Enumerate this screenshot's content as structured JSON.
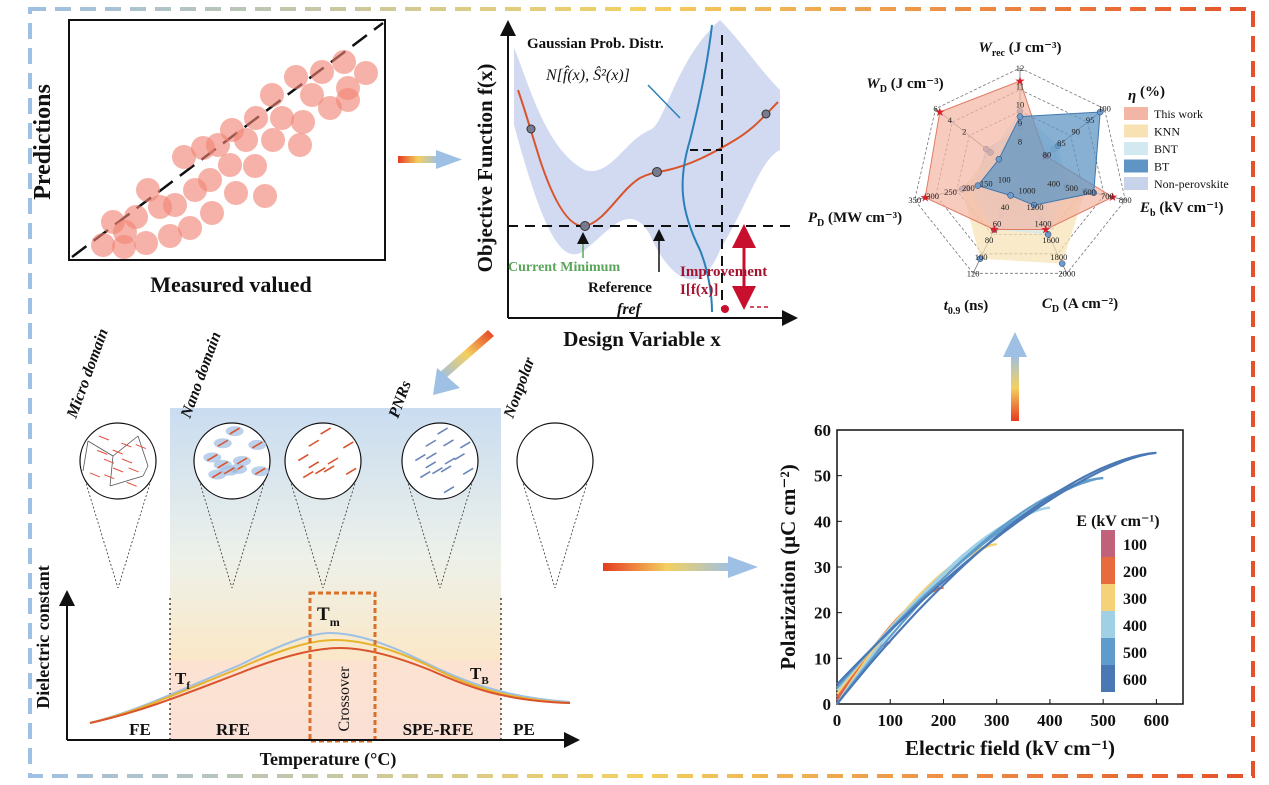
{
  "scatter_panel": {
    "ylabel": "Predictions",
    "xlabel": "Measured valued"
  },
  "bo_panel": {
    "ylabel": "Objective Function f(x)",
    "xlabel": "Design Variable x",
    "gaussian_label": "Gaussian Prob. Distr.",
    "normal_label": "N[f̂(x), Ŝ²(x)]",
    "current_min_label": "Current Minimum",
    "reference_label": "Reference",
    "fref_label": "fref",
    "improvement_label": "Improvement",
    "improvement_formula": "I[f(x)]"
  },
  "radar": {
    "axes": [
      {
        "name": "Wrec",
        "unit": "(J cm⁻³)",
        "ticks": [
          "12",
          "11",
          "10",
          "9",
          "8"
        ]
      },
      {
        "name": "η",
        "unit": "(%)",
        "ticks": [
          "100",
          "95",
          "90",
          "85",
          "80"
        ]
      },
      {
        "name": "Eb",
        "unit": "(kV cm⁻¹)",
        "ticks": [
          "800",
          "700",
          "600",
          "500",
          "400"
        ]
      },
      {
        "name": "CD",
        "unit": "(A cm⁻²)",
        "ticks": [
          "2000",
          "1800",
          "1600",
          "1400",
          "1200",
          "1000"
        ]
      },
      {
        "name": "t0.9",
        "unit": "(ns)",
        "ticks": [
          "120",
          "100",
          "80",
          "60",
          "40"
        ]
      },
      {
        "name": "PD",
        "unit": "(MW cm⁻³)",
        "ticks": [
          "350",
          "300",
          "250",
          "200",
          "150",
          "100"
        ]
      },
      {
        "name": "WD",
        "unit": "(J cm⁻³)",
        "ticks": [
          "6",
          "4",
          "2"
        ]
      }
    ],
    "legend": [
      {
        "label": "This work",
        "color": "#f4b6a4"
      },
      {
        "label": "KNN",
        "color": "#f7e2b3"
      },
      {
        "label": "BNT",
        "color": "#d3e9f2"
      },
      {
        "label": "BT",
        "color": "#5f95c4"
      },
      {
        "label": "Non-perovskite",
        "color": "#c8d3ea"
      }
    ],
    "series_fractions": {
      "This work": [
        0.88,
        0.3,
        0.88,
        0.55,
        0.55,
        0.9,
        0.95
      ],
      "KNN": [
        0.35,
        0.3,
        0.62,
        0.9,
        0.85,
        0.55,
        0.35
      ],
      "BNT": [
        0.6,
        0.45,
        0.45,
        0.6,
        0.55,
        0.5,
        0.35
      ],
      "BT": [
        0.55,
        0.95,
        0.7,
        0.3,
        0.2,
        0.4,
        0.25
      ],
      "Non-perovskite": [
        0.45,
        0.4,
        0.4,
        0.45,
        0.4,
        0.45,
        0.4
      ]
    }
  },
  "phase_panel": {
    "domains": [
      "Micro domain",
      "Nano domain",
      "",
      "PNRs",
      "Nonpolar"
    ],
    "ylabel": "Dielectric constant",
    "xlabel": "Temperature (°C)",
    "regions": [
      "FE",
      "RFE",
      "Crossover",
      "SPE-RFE",
      "PE"
    ],
    "tf_label": "T",
    "tf_sub": "f",
    "tm_label": "T",
    "tm_sub": "m",
    "tb_label": "T",
    "tb_sub": "B"
  },
  "pe_chart": {
    "chart_data": {
      "type": "line",
      "title": "",
      "xlabel": "Electric field (kV cm⁻¹)",
      "ylabel": "Polarization (μC cm⁻²)",
      "xlim": [
        0,
        650
      ],
      "ylim": [
        0,
        60
      ],
      "xticks": [
        0,
        100,
        200,
        300,
        400,
        500,
        600
      ],
      "yticks": [
        0,
        10,
        20,
        30,
        40,
        50,
        60
      ],
      "legend_title": "E (kV cm⁻¹)",
      "series": [
        {
          "name": "100",
          "color": "#c0627a",
          "emax": 100,
          "pmax": 13.5,
          "pr": 0.8
        },
        {
          "name": "200",
          "color": "#e96a3c",
          "emax": 200,
          "pmax": 25.5,
          "pr": 1.5
        },
        {
          "name": "300",
          "color": "#f5d27a",
          "emax": 300,
          "pmax": 35.0,
          "pr": 2.2
        },
        {
          "name": "400",
          "color": "#9fd0e6",
          "emax": 400,
          "pmax": 43.0,
          "pr": 3.0
        },
        {
          "name": "500",
          "color": "#5f9ccc",
          "emax": 500,
          "pmax": 49.5,
          "pr": 3.6
        },
        {
          "name": "600",
          "color": "#4a78b5",
          "emax": 600,
          "pmax": 55.0,
          "pr": 4.3
        }
      ]
    }
  }
}
